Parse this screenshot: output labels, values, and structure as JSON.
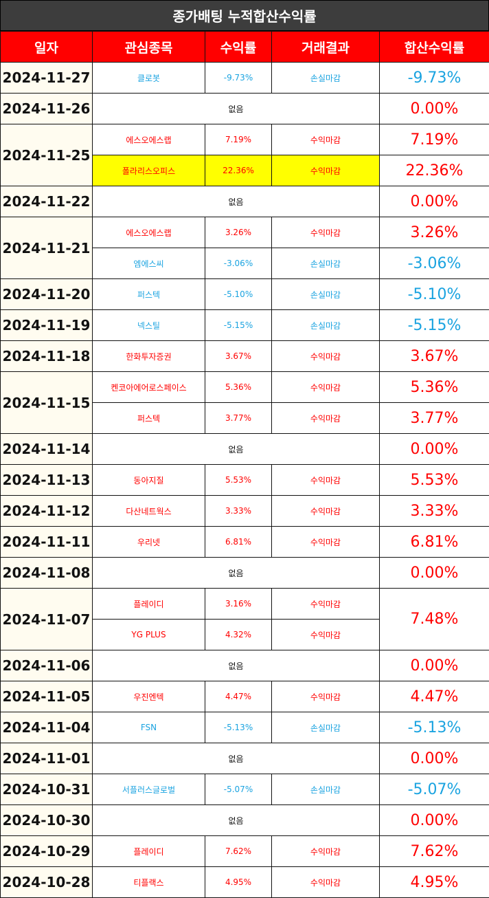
{
  "title": "종가배팅 누적합산수익률",
  "headers": [
    "일자",
    "관심종목",
    "수익률",
    "거래결과",
    "합산수익률"
  ],
  "none_label": "없음",
  "groups": [
    {
      "date": "2024-11-27",
      "rows": [
        {
          "stock": "클로봇",
          "rate": "-9.73%",
          "result": "손실마감",
          "total": "-9.73%",
          "sign": "neg"
        }
      ]
    },
    {
      "date": "2024-11-26",
      "none": true,
      "total": "0.00%"
    },
    {
      "date": "2024-11-25",
      "rows": [
        {
          "stock": "에스오에스랩",
          "rate": "7.19%",
          "result": "수익마감",
          "total": "7.19%",
          "sign": "pos"
        },
        {
          "stock": "폴라리스오피스",
          "rate": "22.36%",
          "result": "수익마감",
          "total": "22.36%",
          "sign": "pos",
          "highlight": true
        }
      ]
    },
    {
      "date": "2024-11-22",
      "none": true,
      "total": "0.00%"
    },
    {
      "date": "2024-11-21",
      "rows": [
        {
          "stock": "에스오에스랩",
          "rate": "3.26%",
          "result": "수익마감",
          "total": "3.26%",
          "sign": "pos"
        },
        {
          "stock": "엠에스씨",
          "rate": "-3.06%",
          "result": "손실마감",
          "total": "-3.06%",
          "sign": "neg"
        }
      ]
    },
    {
      "date": "2024-11-20",
      "rows": [
        {
          "stock": "퍼스텍",
          "rate": "-5.10%",
          "result": "손실마감",
          "total": "-5.10%",
          "sign": "neg"
        }
      ]
    },
    {
      "date": "2024-11-19",
      "rows": [
        {
          "stock": "넥스틸",
          "rate": "-5.15%",
          "result": "손실마감",
          "total": "-5.15%",
          "sign": "neg"
        }
      ]
    },
    {
      "date": "2024-11-18",
      "rows": [
        {
          "stock": "한화투자증권",
          "rate": "3.67%",
          "result": "수익마감",
          "total": "3.67%",
          "sign": "pos"
        }
      ]
    },
    {
      "date": "2024-11-15",
      "rows": [
        {
          "stock": "켄코아에어로스페이스",
          "rate": "5.36%",
          "result": "수익마감",
          "total": "5.36%",
          "sign": "pos"
        },
        {
          "stock": "퍼스텍",
          "rate": "3.77%",
          "result": "수익마감",
          "total": "3.77%",
          "sign": "pos"
        }
      ]
    },
    {
      "date": "2024-11-14",
      "none": true,
      "total": "0.00%"
    },
    {
      "date": "2024-11-13",
      "rows": [
        {
          "stock": "동아지질",
          "rate": "5.53%",
          "result": "수익마감",
          "total": "5.53%",
          "sign": "pos"
        }
      ]
    },
    {
      "date": "2024-11-12",
      "rows": [
        {
          "stock": "다산네트웍스",
          "rate": "3.33%",
          "result": "수익마감",
          "total": "3.33%",
          "sign": "pos"
        }
      ]
    },
    {
      "date": "2024-11-11",
      "rows": [
        {
          "stock": "우리넷",
          "rate": "6.81%",
          "result": "수익마감",
          "total": "6.81%",
          "sign": "pos"
        }
      ]
    },
    {
      "date": "2024-11-08",
      "none": true,
      "total": "0.00%"
    },
    {
      "date": "2024-11-07",
      "merged_total": "7.48%",
      "rows": [
        {
          "stock": "플레이디",
          "rate": "3.16%",
          "result": "수익마감",
          "sign": "pos"
        },
        {
          "stock": "YG PLUS",
          "rate": "4.32%",
          "result": "수익마감",
          "sign": "pos"
        }
      ]
    },
    {
      "date": "2024-11-06",
      "none": true,
      "total": "0.00%"
    },
    {
      "date": "2024-11-05",
      "rows": [
        {
          "stock": "우진엔텍",
          "rate": "4.47%",
          "result": "수익마감",
          "total": "4.47%",
          "sign": "pos"
        }
      ]
    },
    {
      "date": "2024-11-04",
      "rows": [
        {
          "stock": "FSN",
          "rate": "-5.13%",
          "result": "손실마감",
          "total": "-5.13%",
          "sign": "neg"
        }
      ]
    },
    {
      "date": "2024-11-01",
      "none": true,
      "total": "0.00%"
    },
    {
      "date": "2024-10-31",
      "rows": [
        {
          "stock": "서플러스글로벌",
          "rate": "-5.07%",
          "result": "손실마감",
          "total": "-5.07%",
          "sign": "neg"
        }
      ]
    },
    {
      "date": "2024-10-30",
      "none": true,
      "total": "0.00%"
    },
    {
      "date": "2024-10-29",
      "rows": [
        {
          "stock": "플레이디",
          "rate": "7.62%",
          "result": "수익마감",
          "total": "7.62%",
          "sign": "pos"
        }
      ]
    },
    {
      "date": "2024-10-28",
      "rows": [
        {
          "stock": "티플랙스",
          "rate": "4.95%",
          "result": "수익마감",
          "total": "4.95%",
          "sign": "pos"
        }
      ]
    }
  ]
}
